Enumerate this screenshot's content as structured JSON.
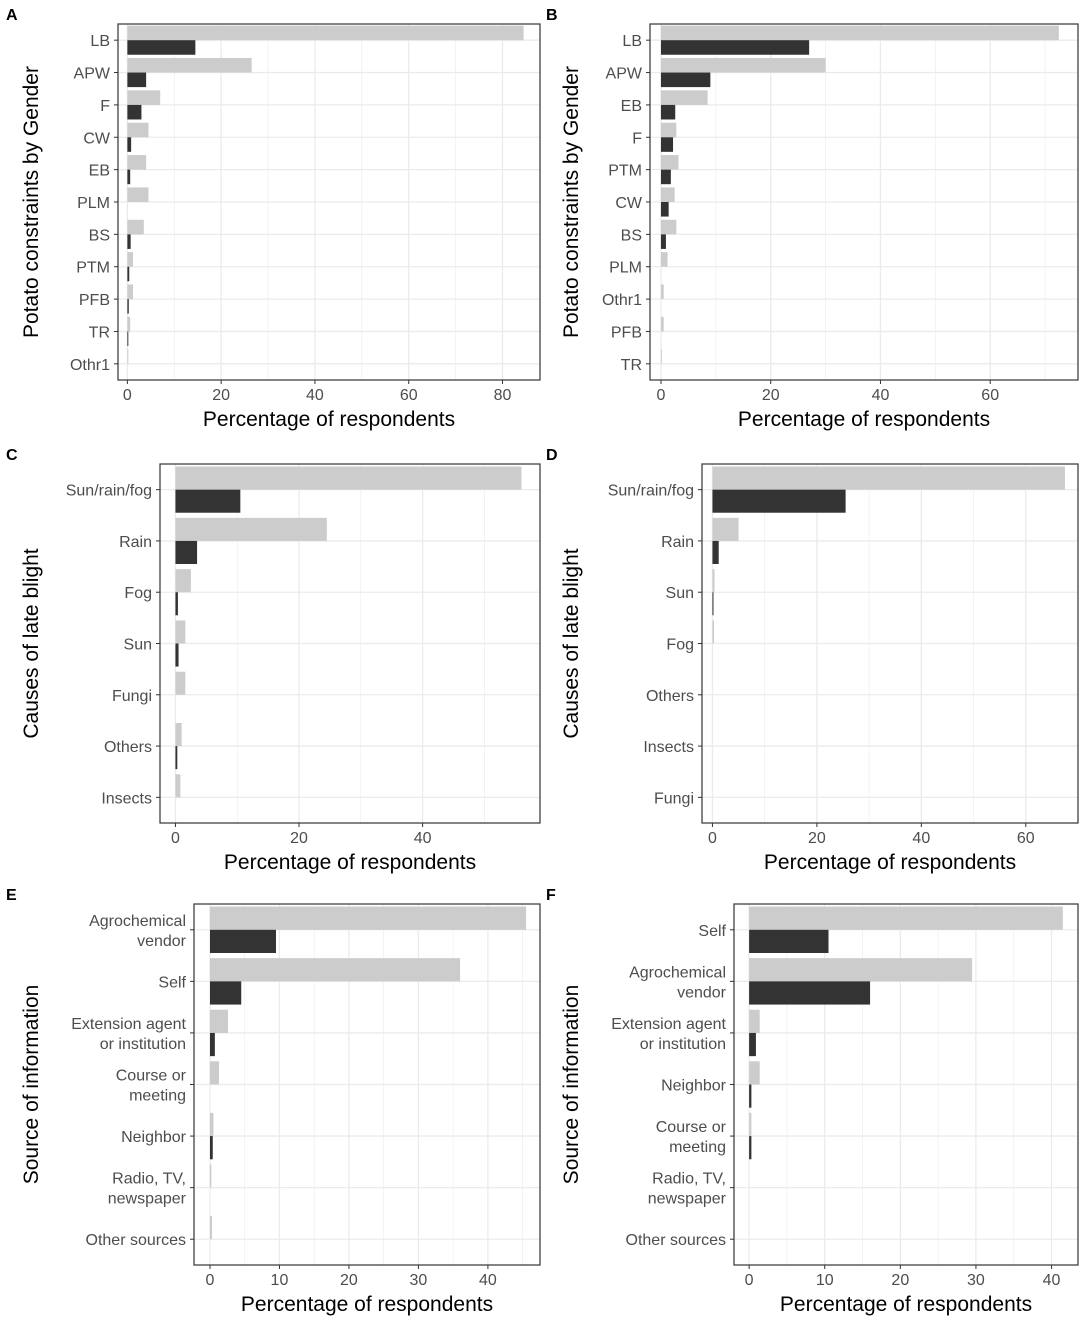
{
  "colors": {
    "female": "#cccccc",
    "male": "#333333",
    "grid": "#ebebeb",
    "border": "#333333"
  },
  "chart_data": [
    {
      "panel": "A",
      "type": "bar",
      "orientation": "horizontal",
      "ylabel": "Potato constraints by Gender",
      "xlabel": "Percentage of respondents",
      "xlim": [
        -2,
        88
      ],
      "xticks": [
        "0",
        "20",
        "40",
        "60",
        "80"
      ],
      "categories": [
        "LB",
        "APW",
        "F",
        "CW",
        "EB",
        "PLM",
        "BS",
        "PTM",
        "PFB",
        "TR",
        "Othr1"
      ],
      "series": [
        {
          "name": "light",
          "values": [
            84.5,
            26.5,
            7.0,
            4.5,
            4.0,
            4.5,
            3.5,
            1.2,
            1.2,
            0.6,
            0.2
          ]
        },
        {
          "name": "dark",
          "values": [
            14.5,
            4.0,
            3.0,
            0.8,
            0.6,
            0.0,
            0.7,
            0.4,
            0.3,
            0.2,
            0.0
          ]
        }
      ]
    },
    {
      "panel": "B",
      "type": "bar",
      "orientation": "horizontal",
      "ylabel": "Potato constraints by Gender",
      "xlabel": "Percentage of respondents",
      "xlim": [
        -2,
        76
      ],
      "xticks": [
        "0",
        "20",
        "40",
        "60"
      ],
      "categories": [
        "LB",
        "APW",
        "EB",
        "F",
        "PTM",
        "CW",
        "BS",
        "PLM",
        "Othr1",
        "PFB",
        "TR"
      ],
      "series": [
        {
          "name": "light",
          "values": [
            72.5,
            30.0,
            8.5,
            2.8,
            3.2,
            2.5,
            2.8,
            1.2,
            0.5,
            0.5,
            0.1
          ]
        },
        {
          "name": "dark",
          "values": [
            27.0,
            9.0,
            2.6,
            2.2,
            1.8,
            1.4,
            0.9,
            0.0,
            0.0,
            0.0,
            0.0
          ]
        }
      ]
    },
    {
      "panel": "C",
      "type": "bar",
      "orientation": "horizontal",
      "ylabel": "Causes of late blight",
      "xlabel": "Percentage of respondents",
      "xlim": [
        -2.5,
        59
      ],
      "xticks": [
        "0",
        "20",
        "40"
      ],
      "categories": [
        "Sun/rain/fog",
        "Rain",
        "Fog",
        "Sun",
        "Fungi",
        "Others",
        "Insects"
      ],
      "series": [
        {
          "name": "light",
          "values": [
            56.0,
            24.5,
            2.5,
            1.6,
            1.6,
            1.0,
            0.8
          ]
        },
        {
          "name": "dark",
          "values": [
            10.5,
            3.5,
            0.4,
            0.5,
            0.0,
            0.3,
            0.0
          ]
        }
      ]
    },
    {
      "panel": "D",
      "type": "bar",
      "orientation": "horizontal",
      "ylabel": "Causes of late blight",
      "xlabel": "Percentage of respondents",
      "xlim": [
        -2,
        70
      ],
      "xticks": [
        "0",
        "20",
        "40",
        "60"
      ],
      "categories": [
        "Sun/rain/fog",
        "Rain",
        "Sun",
        "Fog",
        "Others",
        "Insects",
        "Fungi"
      ],
      "series": [
        {
          "name": "light",
          "values": [
            67.5,
            5.0,
            0.4,
            0.3,
            0.0,
            0.0,
            0.0
          ]
        },
        {
          "name": "dark",
          "values": [
            25.5,
            1.2,
            0.2,
            0.0,
            0.0,
            0.0,
            0.0
          ]
        }
      ]
    },
    {
      "panel": "E",
      "type": "bar",
      "orientation": "horizontal",
      "ylabel": "Source of information",
      "xlabel": "Percentage of respondents",
      "xlim": [
        -2.3,
        47.5
      ],
      "xticks": [
        "0",
        "10",
        "20",
        "30",
        "40"
      ],
      "categories": [
        [
          "Agrochemical",
          "vendor"
        ],
        [
          "Self"
        ],
        [
          "Extension agent",
          "or institution"
        ],
        [
          "Course or",
          "meeting"
        ],
        [
          "Neighbor"
        ],
        [
          "Radio, TV,",
          "newspaper"
        ],
        [
          "Other sources"
        ]
      ],
      "series": [
        {
          "name": "light",
          "values": [
            45.5,
            36.0,
            2.6,
            1.3,
            0.5,
            0.2,
            0.3
          ]
        },
        {
          "name": "dark",
          "values": [
            9.5,
            4.5,
            0.7,
            0.0,
            0.4,
            0.0,
            0.0
          ]
        }
      ]
    },
    {
      "panel": "F",
      "type": "bar",
      "orientation": "horizontal",
      "ylabel": "Source of information",
      "xlabel": "Percentage of respondents",
      "xlim": [
        -2,
        43.5
      ],
      "xticks": [
        "0",
        "10",
        "20",
        "30",
        "40"
      ],
      "categories": [
        [
          "Self"
        ],
        [
          "Agrochemical",
          "vendor"
        ],
        [
          "Extension agent",
          "or institution"
        ],
        [
          "Neighbor"
        ],
        [
          "Course or",
          "meeting"
        ],
        [
          "Radio, TV,",
          "newspaper"
        ],
        [
          "Other sources"
        ]
      ],
      "series": [
        {
          "name": "light",
          "values": [
            41.5,
            29.5,
            1.4,
            1.4,
            0.3,
            0.0,
            0.0
          ]
        },
        {
          "name": "dark",
          "values": [
            10.5,
            16.0,
            0.9,
            0.3,
            0.3,
            0.0,
            0.0
          ]
        }
      ]
    }
  ]
}
